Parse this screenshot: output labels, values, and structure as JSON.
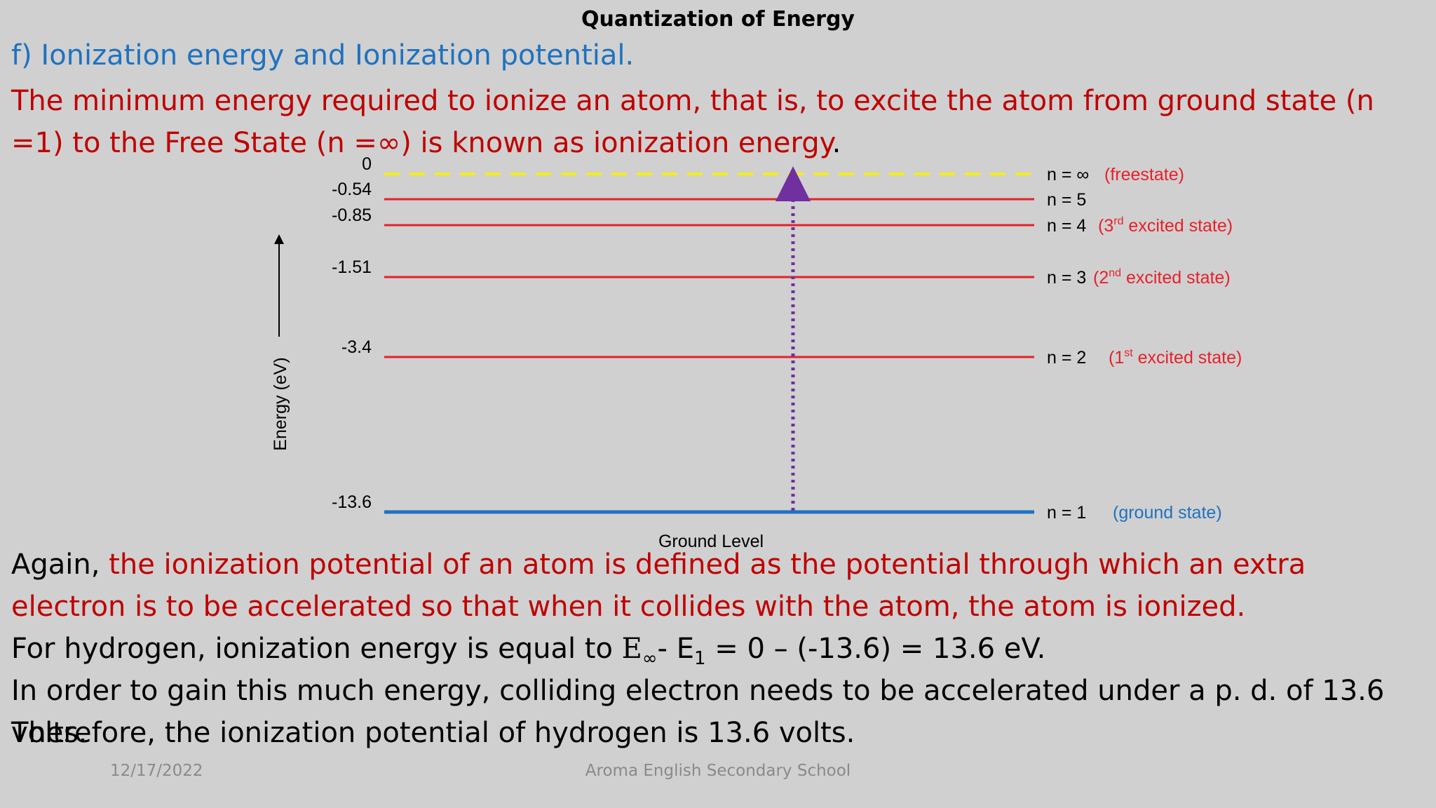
{
  "slide": {
    "title": "Quantization of Energy",
    "heading": "f) Ionization energy and Ionization potential.",
    "definition_red": "The minimum energy required to ionize an atom, that is, to excite the atom from ground state (n =1) to the Free State (n =∞) is known as ionization energy",
    "definition_end": ".",
    "para1_lead": "Again, ",
    "para1_red": "the ionization potential of an atom is defined as the potential through which an extra electron is to be accelerated so that when it collides with the atom, the atom is ionized.",
    "para2_pre": "For hydrogen, ionization energy is equal to ",
    "para2_E": "E",
    "para2_inf_sub": "∞",
    "para2_mid": "- E",
    "para2_one_sub": "1",
    "para2_post": " = 0 – (-13.6) = 13.6 eV.",
    "para3": "In order to gain this much energy, colliding electron needs to be accelerated under a p. d. of 13.6 volts.",
    "para4": "Therefore, the ionization potential of hydrogen is 13.6 volts.",
    "footer_date": "12/17/2022",
    "footer_school": "Aroma English Secondary School"
  },
  "colors": {
    "heading": "#1f72c0",
    "red_text": "#c00000",
    "level_line": "#e8202a",
    "ground_line": "#1f72c0",
    "free_line": "#f2ee1a",
    "arrow": "#7030a0",
    "state_label_red": "#e8202a",
    "state_label_blue": "#1f72c0"
  },
  "diagram": {
    "axis_label": "Energy (eV)",
    "ground_caption": "Ground Level",
    "levels": [
      {
        "energy": 0,
        "value_label": "0",
        "n_label": "n = ∞",
        "state": "(freestate)",
        "sup": "",
        "state_rest": "",
        "style": "free"
      },
      {
        "energy": -0.54,
        "value_label": "-0.54",
        "n_label": "n = 5",
        "state": "",
        "sup": "",
        "state_rest": "",
        "style": "excited"
      },
      {
        "energy": -0.85,
        "value_label": "-0.85",
        "n_label": "n = 4",
        "state": "(3",
        "sup": "rd",
        "state_rest": " excited state)",
        "style": "excited"
      },
      {
        "energy": -1.51,
        "value_label": "-1.51",
        "n_label": "n = 3",
        "state": "(2",
        "sup": "nd",
        "state_rest": " excited state)",
        "style": "excited"
      },
      {
        "energy": -3.4,
        "value_label": "-3.4",
        "n_label": "n = 2",
        "state": "(1",
        "sup": "st",
        "state_rest": " excited state)",
        "style": "excited"
      },
      {
        "energy": -13.6,
        "value_label": "-13.6",
        "n_label": "n = 1",
        "state": "(ground state)",
        "sup": "",
        "state_rest": "",
        "style": "ground"
      }
    ]
  }
}
